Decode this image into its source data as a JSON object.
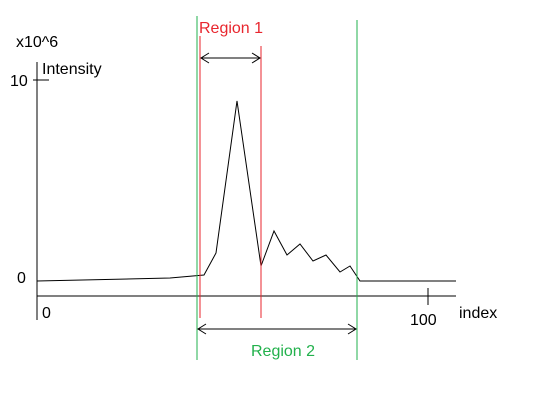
{
  "labels": {
    "y_unit": "x10^6",
    "y_axis": "Intensity",
    "x_axis": "index",
    "tick_y_top": "10",
    "tick_y_zero": "0",
    "tick_x_zero": "0",
    "tick_x_end": "100",
    "region1": "Region 1",
    "region2": "Region 2"
  },
  "colors": {
    "axis": "#000000",
    "curve": "#000000",
    "region1": "#e8262e",
    "region2": "#22b14c"
  }
}
